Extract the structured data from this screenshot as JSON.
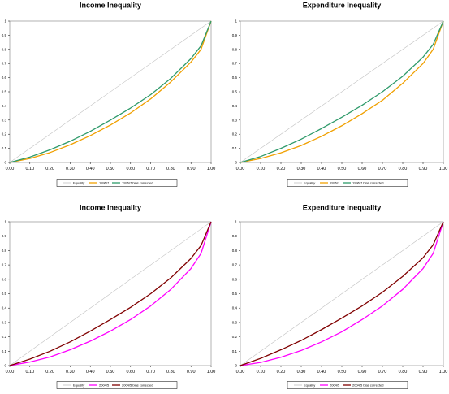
{
  "chart_data": [
    {
      "type": "line",
      "title": "Income Inequality",
      "xlabel": "",
      "ylabel": "",
      "xlim": [
        0,
        1
      ],
      "ylim": [
        0,
        1
      ],
      "x_ticks": [
        "0.00",
        "0.10",
        "0.20",
        "0.30",
        "0.40",
        "0.50",
        "0.60",
        "0.70",
        "0.80",
        "0.90",
        "1.00"
      ],
      "y_ticks": [
        "0",
        "0.1",
        "0.2",
        "0.3",
        "0.4",
        "0.5",
        "0.6",
        "0.7",
        "0.8",
        "0.9",
        "1"
      ],
      "legend_position": "bottom",
      "series": [
        {
          "name": "Equality",
          "color": "#c0c0c0",
          "x": [
            0,
            1
          ],
          "y": [
            0,
            1
          ]
        },
        {
          "name": "1996/7",
          "color": "#f0a000",
          "x": [
            0,
            0.1,
            0.2,
            0.3,
            0.4,
            0.5,
            0.6,
            0.7,
            0.8,
            0.9,
            0.95,
            1
          ],
          "y": [
            0,
            0.028,
            0.07,
            0.125,
            0.19,
            0.265,
            0.35,
            0.45,
            0.57,
            0.71,
            0.8,
            1
          ]
        },
        {
          "name": "1996/7 bias corrected",
          "color": "#2e9a6a",
          "x": [
            0,
            0.1,
            0.2,
            0.3,
            0.4,
            0.5,
            0.6,
            0.7,
            0.8,
            0.9,
            0.95,
            1
          ],
          "y": [
            0,
            0.038,
            0.09,
            0.15,
            0.22,
            0.3,
            0.385,
            0.48,
            0.595,
            0.735,
            0.825,
            1
          ]
        }
      ]
    },
    {
      "type": "line",
      "title": "Expenditure Inequality",
      "xlabel": "",
      "ylabel": "",
      "xlim": [
        0,
        1
      ],
      "ylim": [
        0,
        1
      ],
      "x_ticks": [
        "0.00",
        "0.10",
        "0.20",
        "0.30",
        "0.40",
        "0.50",
        "0.60",
        "0.70",
        "0.80",
        "0.90",
        "1.00"
      ],
      "y_ticks": [
        "0",
        "0.1",
        "0.2",
        "0.3",
        "0.4",
        "0.5",
        "0.6",
        "0.7",
        "0.8",
        "0.9",
        "1"
      ],
      "legend_position": "bottom",
      "series": [
        {
          "name": "Equality",
          "color": "#c0c0c0",
          "x": [
            0,
            1
          ],
          "y": [
            0,
            1
          ]
        },
        {
          "name": "1996/7",
          "color": "#f0a000",
          "x": [
            0,
            0.1,
            0.2,
            0.3,
            0.4,
            0.5,
            0.6,
            0.7,
            0.8,
            0.9,
            0.95,
            1
          ],
          "y": [
            0,
            0.028,
            0.068,
            0.12,
            0.185,
            0.26,
            0.345,
            0.44,
            0.56,
            0.7,
            0.8,
            1
          ]
        },
        {
          "name": "1996/7 bias corrected",
          "color": "#2e9a6a",
          "x": [
            0,
            0.1,
            0.2,
            0.3,
            0.4,
            0.5,
            0.6,
            0.7,
            0.8,
            0.9,
            0.95,
            1
          ],
          "y": [
            0,
            0.042,
            0.1,
            0.165,
            0.24,
            0.32,
            0.405,
            0.5,
            0.61,
            0.745,
            0.835,
            1
          ]
        }
      ]
    },
    {
      "type": "line",
      "title": "Income Inequality",
      "xlabel": "",
      "ylabel": "",
      "xlim": [
        0,
        1
      ],
      "ylim": [
        0,
        1
      ],
      "x_ticks": [
        "0.00",
        "0.10",
        "0.20",
        "0.30",
        "0.40",
        "0.50",
        "0.60",
        "0.70",
        "0.80",
        "0.90",
        "1.00"
      ],
      "y_ticks": [
        "0",
        "0.1",
        "0.2",
        "0.3",
        "0.4",
        "0.5",
        "0.6",
        "0.7",
        "0.8",
        "0.9",
        "1"
      ],
      "legend_position": "bottom",
      "series": [
        {
          "name": "Equality",
          "color": "#c0c0c0",
          "x": [
            0,
            1
          ],
          "y": [
            0,
            1
          ]
        },
        {
          "name": "2004/5",
          "color": "#ff00ff",
          "x": [
            0,
            0.1,
            0.2,
            0.3,
            0.4,
            0.5,
            0.6,
            0.7,
            0.8,
            0.9,
            0.95,
            1
          ],
          "y": [
            0,
            0.025,
            0.06,
            0.11,
            0.17,
            0.24,
            0.32,
            0.415,
            0.53,
            0.675,
            0.78,
            1
          ]
        },
        {
          "name": "2004/5 bias corrected",
          "color": "#800000",
          "x": [
            0,
            0.1,
            0.2,
            0.3,
            0.4,
            0.5,
            0.6,
            0.7,
            0.8,
            0.9,
            0.95,
            1
          ],
          "y": [
            0,
            0.045,
            0.1,
            0.165,
            0.24,
            0.32,
            0.405,
            0.5,
            0.61,
            0.745,
            0.835,
            1
          ]
        }
      ]
    },
    {
      "type": "line",
      "title": "Expenditure Inequality",
      "xlabel": "",
      "ylabel": "",
      "xlim": [
        0,
        1
      ],
      "ylim": [
        0,
        1
      ],
      "x_ticks": [
        "0.00",
        "0.10",
        "0.20",
        "0.30",
        "0.40",
        "0.50",
        "0.60",
        "0.70",
        "0.80",
        "0.90",
        "1.00"
      ],
      "y_ticks": [
        "0",
        "0.1",
        "0.2",
        "0.3",
        "0.4",
        "0.5",
        "0.6",
        "0.7",
        "0.8",
        "0.9",
        "1"
      ],
      "legend_position": "bottom",
      "series": [
        {
          "name": "Equality",
          "color": "#c0c0c0",
          "x": [
            0,
            1
          ],
          "y": [
            0,
            1
          ]
        },
        {
          "name": "2004/5",
          "color": "#ff00ff",
          "x": [
            0,
            0.1,
            0.2,
            0.3,
            0.4,
            0.5,
            0.6,
            0.7,
            0.8,
            0.9,
            0.95,
            1
          ],
          "y": [
            0,
            0.022,
            0.058,
            0.105,
            0.165,
            0.235,
            0.32,
            0.415,
            0.53,
            0.675,
            0.78,
            1
          ]
        },
        {
          "name": "2004/5 bias corrected",
          "color": "#800000",
          "x": [
            0,
            0.1,
            0.2,
            0.3,
            0.4,
            0.5,
            0.6,
            0.7,
            0.8,
            0.9,
            0.95,
            1
          ],
          "y": [
            0,
            0.05,
            0.11,
            0.175,
            0.25,
            0.33,
            0.415,
            0.51,
            0.62,
            0.75,
            0.84,
            1
          ]
        }
      ]
    }
  ]
}
